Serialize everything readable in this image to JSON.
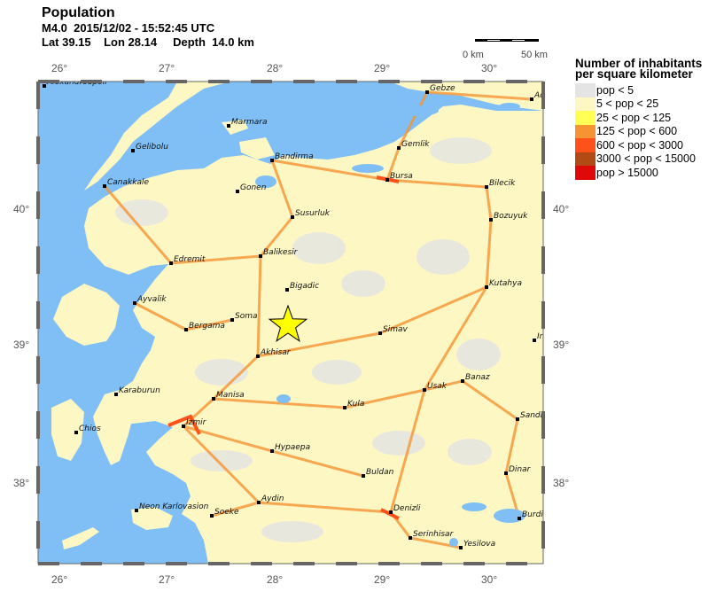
{
  "header": {
    "title": "Population",
    "event": "M4.0  2015/12/02 - 15:52:45 UTC",
    "location": "Lat 39.15    Lon 28.14     Depth  14.0 km"
  },
  "axes": {
    "lon_ticks": [
      "26°",
      "27°",
      "28°",
      "29°",
      "30°"
    ],
    "lat_ticks": [
      "40°",
      "39°",
      "38°"
    ]
  },
  "scale_bar": {
    "start": "0 km",
    "end": "50 km"
  },
  "epicenter": {
    "marker": "star-icon",
    "color": "#ffff00"
  },
  "legend": {
    "title_line1": "Number of inhabitants",
    "title_line2": "per square kilometer",
    "items": [
      {
        "label": "pop < 5",
        "color": "#e4e4e4"
      },
      {
        "label": "5 < pop < 25",
        "color": "#fdf7c4"
      },
      {
        "label": "25 < pop < 125",
        "color": "#ffff55"
      },
      {
        "label": "125 < pop < 600",
        "color": "#f69433"
      },
      {
        "label": "600 < pop < 3000",
        "color": "#ff5119"
      },
      {
        "label": "3000 < pop < 15000",
        "color": "#b24a16"
      },
      {
        "label": "pop > 15000",
        "color": "#e00909"
      }
    ]
  },
  "colors": {
    "water": "#7fbff5",
    "land": "#fdf7c4"
  },
  "cities": [
    "Alexandroupoli",
    "Gebze",
    "Ad",
    "Marmara",
    "Gelibolu",
    "Gemlik",
    "Bandirma",
    "Bursa",
    "Canakkale",
    "Gonen",
    "Bilecik",
    "Susurluk",
    "Bozuyuk",
    "Balikesir",
    "Edremit",
    "Bigadic",
    "Kutahya",
    "Ayvalik",
    "Soma",
    "Bergama",
    "Simav",
    "In",
    "Akhisar",
    "Karaburun",
    "Usak",
    "Banaz",
    "Manisa",
    "Kula",
    "Izmir",
    "Chios",
    "Sandi",
    "Hypaepa",
    "Buldan",
    "Dinar",
    "Neon Karlovasion",
    "Aydin",
    "Soeke",
    "Denizli",
    "Burdi",
    "Serinhisar",
    "Yesilova"
  ]
}
